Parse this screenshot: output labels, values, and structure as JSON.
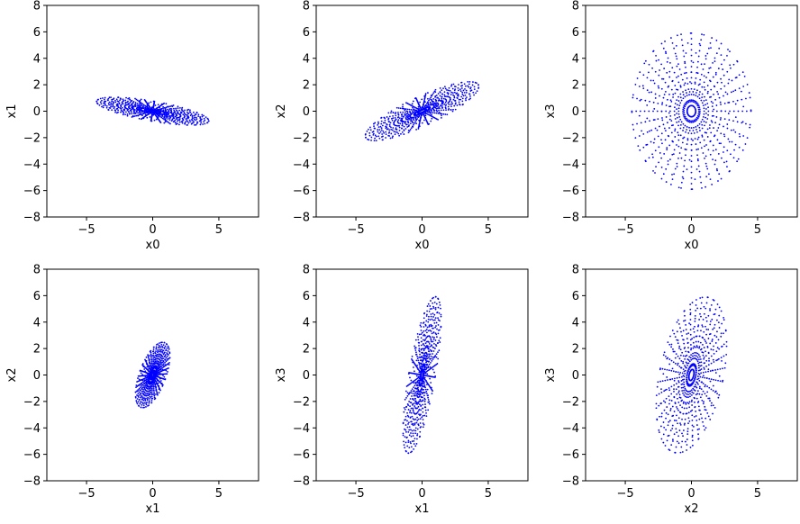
{
  "chart_data": [
    {
      "type": "scatter",
      "xlabel": "x0",
      "ylabel": "x1",
      "xlim": [
        -8,
        8
      ],
      "ylim": [
        -8,
        8
      ],
      "xticks": [
        "−5",
        "0",
        "5"
      ],
      "yticks": [
        "−8",
        "−6",
        "−4",
        "−2",
        "0",
        "2",
        "4",
        "6",
        "8"
      ],
      "grid": false,
      "point_color": "#0000ff",
      "pattern": {
        "center": [
          0,
          0
        ],
        "semi_axis_a": 4.3,
        "semi_axis_b": 0.75,
        "rotation_deg": -10,
        "rings": 8,
        "spokes": 36,
        "points_per_ring": 28
      }
    },
    {
      "type": "scatter",
      "xlabel": "x0",
      "ylabel": "x2",
      "xlim": [
        -8,
        8
      ],
      "ylim": [
        -8,
        8
      ],
      "xticks": [
        "−5",
        "0",
        "5"
      ],
      "yticks": [
        "−8",
        "−6",
        "−4",
        "−2",
        "0",
        "2",
        "4",
        "6",
        "8"
      ],
      "grid": false,
      "point_color": "#0000ff",
      "pattern": {
        "center": [
          0,
          0
        ],
        "semi_axis_a": 4.7,
        "semi_axis_b": 1.1,
        "rotation_deg": 25,
        "rings": 8,
        "spokes": 36,
        "points_per_ring": 28
      }
    },
    {
      "type": "scatter",
      "xlabel": "x0",
      "ylabel": "x3",
      "xlim": [
        -8,
        8
      ],
      "ylim": [
        -8,
        8
      ],
      "xticks": [
        "−5",
        "0",
        "5"
      ],
      "yticks": [
        "−8",
        "−6",
        "−4",
        "−2",
        "0",
        "2",
        "4",
        "6",
        "8"
      ],
      "grid": false,
      "point_color": "#0000ff",
      "pattern": {
        "center": [
          0,
          0
        ],
        "semi_axis_a": 4.5,
        "semi_axis_b": 5.9,
        "rotation_deg": 0,
        "rings": 8,
        "spokes": 36,
        "points_per_ring": 28
      }
    },
    {
      "type": "scatter",
      "xlabel": "x1",
      "ylabel": "x2",
      "xlim": [
        -8,
        8
      ],
      "ylim": [
        -8,
        8
      ],
      "xticks": [
        "−5",
        "0",
        "5"
      ],
      "yticks": [
        "−8",
        "−6",
        "−4",
        "−2",
        "0",
        "2",
        "4",
        "6",
        "8"
      ],
      "grid": false,
      "point_color": "#0000ff",
      "pattern": {
        "center": [
          0,
          0
        ],
        "semi_axis_a": 2.6,
        "semi_axis_b": 1.0,
        "rotation_deg": 70,
        "rings": 8,
        "spokes": 36,
        "points_per_ring": 28
      }
    },
    {
      "type": "scatter",
      "xlabel": "x1",
      "ylabel": "x3",
      "xlim": [
        -8,
        8
      ],
      "ylim": [
        -8,
        8
      ],
      "xticks": [
        "−5",
        "0",
        "5"
      ],
      "yticks": [
        "−8",
        "−6",
        "−4",
        "−2",
        "0",
        "2",
        "4",
        "6",
        "8"
      ],
      "grid": false,
      "point_color": "#0000ff",
      "pattern": {
        "center": [
          0,
          0
        ],
        "semi_axis_a": 6.0,
        "semi_axis_b": 1.0,
        "rotation_deg": 80,
        "rings": 8,
        "spokes": 36,
        "points_per_ring": 28
      }
    },
    {
      "type": "scatter",
      "xlabel": "x2",
      "ylabel": "x3",
      "xlim": [
        -8,
        8
      ],
      "ylim": [
        -8,
        8
      ],
      "xticks": [
        "−5",
        "0",
        "5"
      ],
      "yticks": [
        "−8",
        "−6",
        "−4",
        "−2",
        "0",
        "2",
        "4",
        "6",
        "8"
      ],
      "grid": false,
      "point_color": "#0000ff",
      "pattern": {
        "center": [
          0,
          0
        ],
        "semi_axis_a": 6.0,
        "semi_axis_b": 2.4,
        "rotation_deg": 78,
        "rings": 8,
        "spokes": 36,
        "points_per_ring": 28
      }
    }
  ]
}
